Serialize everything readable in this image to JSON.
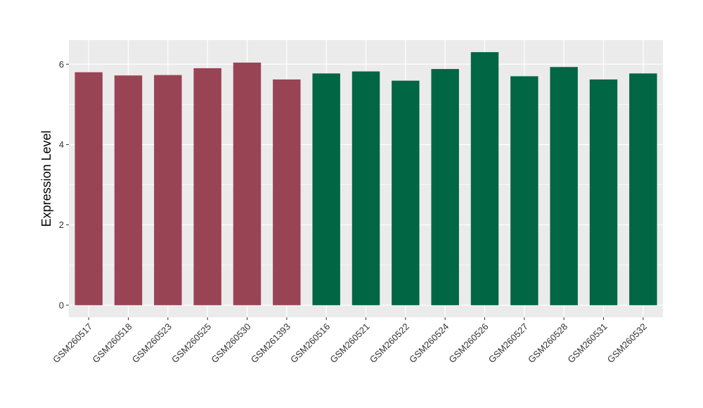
{
  "chart_data": {
    "type": "bar",
    "title": "",
    "xlabel": "",
    "ylabel": "Expression Level",
    "ylim": [
      -0.3,
      6.6
    ],
    "yticks": [
      0,
      2,
      4,
      6
    ],
    "grid": true,
    "panel_background": "#EBEBEB",
    "grid_color": "#FFFFFF",
    "categories": [
      "GSM260517",
      "GSM260518",
      "GSM260523",
      "GSM260525",
      "GSM260530",
      "GSM261393",
      "GSM260516",
      "GSM260521",
      "GSM260522",
      "GSM260524",
      "GSM260526",
      "GSM260527",
      "GSM260528",
      "GSM260531",
      "GSM260532"
    ],
    "values": [
      5.8,
      5.72,
      5.73,
      5.9,
      6.04,
      5.62,
      5.77,
      5.82,
      5.59,
      5.88,
      6.3,
      5.7,
      5.93,
      5.62,
      5.77
    ],
    "colors": [
      "#994455",
      "#994455",
      "#994455",
      "#994455",
      "#994455",
      "#994455",
      "#006644",
      "#006644",
      "#006644",
      "#006644",
      "#006644",
      "#006644",
      "#006644",
      "#006644",
      "#006644"
    ]
  }
}
